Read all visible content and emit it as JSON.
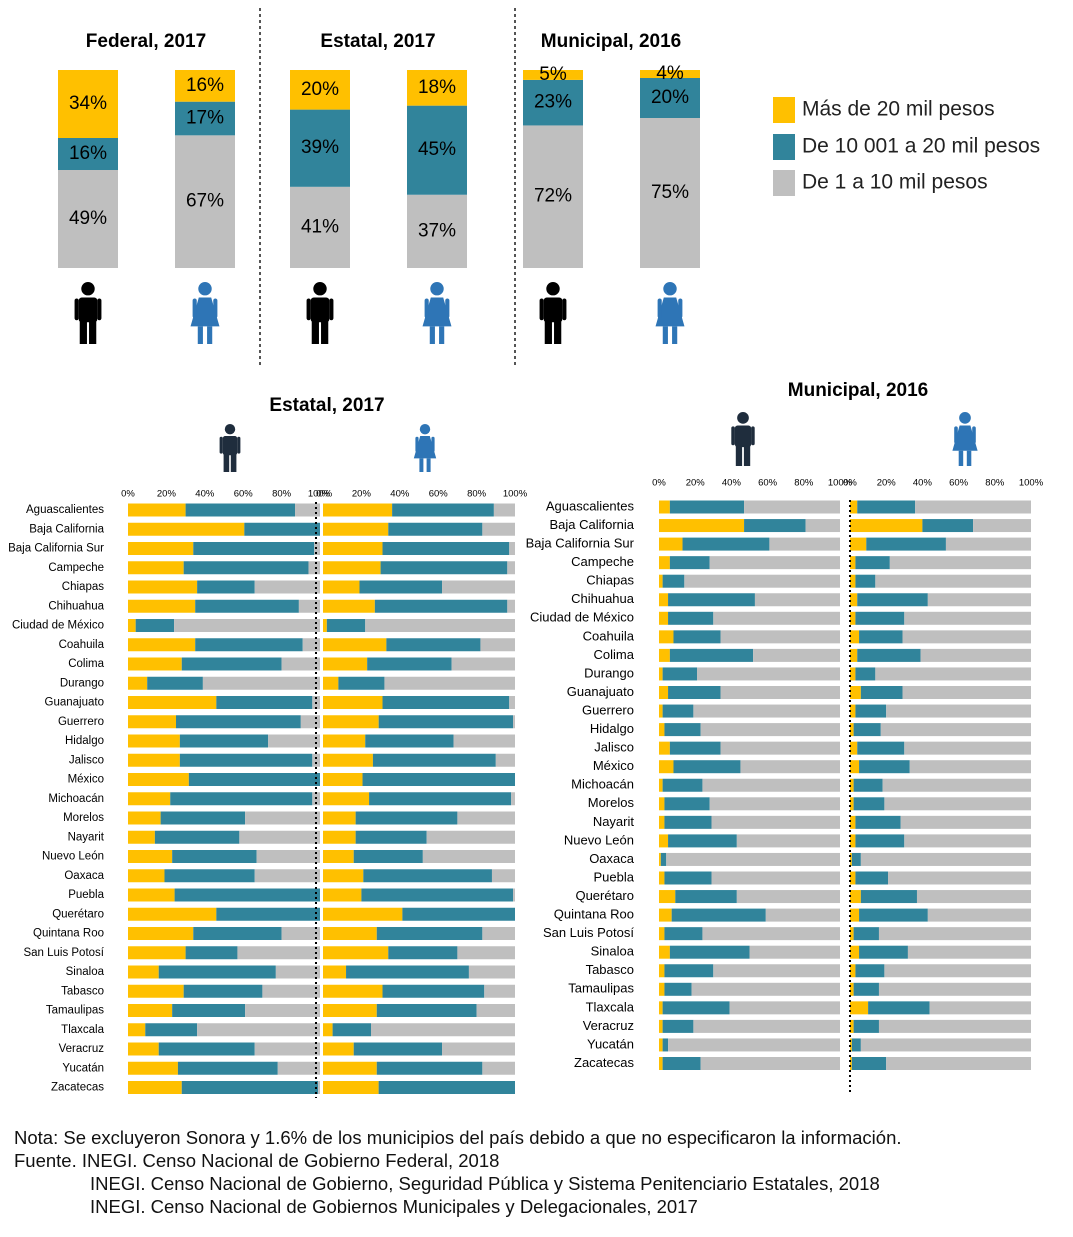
{
  "colors": {
    "high": "#FFC000",
    "mid": "#31849B",
    "low": "#BFBFBF",
    "male": "#000000",
    "female": "#2E75B6",
    "male_small": "#1F2D3D"
  },
  "legend": [
    "Más de 20 mil pesos",
    "De 10 001 a 20 mil pesos",
    "De 1 a 10 mil pesos"
  ],
  "icons": {
    "male": "man-icon",
    "female": "woman-icon"
  },
  "chart_data": [
    {
      "type": "bar",
      "stacked": true,
      "percent_stacked": true,
      "groups": [
        {
          "title": "Federal, 2017",
          "bars": [
            {
              "sex": "male",
              "values": [
                49,
                16,
                34
              ],
              "labels": [
                "49%",
                "16%",
                "34%"
              ]
            },
            {
              "sex": "female",
              "values": [
                67,
                17,
                16
              ],
              "labels": [
                "67%",
                "17%",
                "16%"
              ]
            }
          ]
        },
        {
          "title": "Estatal, 2017",
          "bars": [
            {
              "sex": "male",
              "values": [
                41,
                39,
                20
              ],
              "labels": [
                "41%",
                "39%",
                "20%"
              ]
            },
            {
              "sex": "female",
              "values": [
                37,
                45,
                18
              ],
              "labels": [
                "37%",
                "45%",
                "18%"
              ]
            }
          ]
        },
        {
          "title": "Municipal,  2016",
          "bars": [
            {
              "sex": "male",
              "values": [
                72,
                23,
                5
              ],
              "labels": [
                "72%",
                "23%",
                "5%"
              ]
            },
            {
              "sex": "female",
              "values": [
                75,
                20,
                4
              ],
              "labels": [
                "75%",
                "20%",
                "4%"
              ]
            }
          ]
        }
      ],
      "series": [
        {
          "name": "De 1 a 10 mil pesos"
        },
        {
          "name": "De 10 001 a 20 mil pesos"
        },
        {
          "name": "Más de 20 mil pesos"
        }
      ],
      "ylim": [
        0,
        100
      ]
    },
    {
      "type": "bar",
      "orientation": "horizontal",
      "stacked": true,
      "title": "Estatal, 2017",
      "ticks": [
        "0%",
        "20%",
        "40%",
        "60%",
        "80%",
        "100%"
      ],
      "xlim": [
        0,
        100
      ],
      "segment_order": [
        "Más de 20 mil pesos",
        "De 10 001 a 20 mil pesos",
        "De 1 a 10 mil pesos"
      ],
      "categories": [
        "Aguascalientes",
        "Baja California",
        "Baja California Sur",
        "Campeche",
        "Chiapas",
        "Chihuahua",
        "Ciudad de México",
        "Coahuila",
        "Colima",
        "Durango",
        "Guanajuato",
        "Guerrero",
        "Hidalgo",
        "Jalisco",
        "México",
        "Michoacán",
        "Morelos",
        "Nayarit",
        "Nuevo León",
        "Oaxaca",
        "Puebla",
        "Querétaro",
        "Quintana Roo",
        "San Luis Potosí",
        "Sinaloa",
        "Tabasco",
        "Tamaulipas",
        "Tlaxcala",
        "Veracruz",
        "Yucatán",
        "Zacatecas"
      ],
      "male": [
        [
          30,
          57,
          13
        ],
        [
          63,
          41,
          0
        ],
        [
          34,
          63,
          3
        ],
        [
          29,
          65,
          6
        ],
        [
          36,
          30,
          34
        ],
        [
          35,
          54,
          11
        ],
        [
          4,
          20,
          76
        ],
        [
          35,
          56,
          9
        ],
        [
          28,
          52,
          20
        ],
        [
          10,
          29,
          61
        ],
        [
          46,
          50,
          4
        ],
        [
          25,
          65,
          10
        ],
        [
          27,
          46,
          27
        ],
        [
          27,
          69,
          4
        ],
        [
          32,
          69,
          0
        ],
        [
          22,
          74,
          4
        ],
        [
          17,
          44,
          39
        ],
        [
          14,
          44,
          42
        ],
        [
          23,
          44,
          33
        ],
        [
          19,
          47,
          34
        ],
        [
          25,
          78,
          0
        ],
        [
          46,
          54,
          0
        ],
        [
          34,
          46,
          20
        ],
        [
          30,
          27,
          43
        ],
        [
          16,
          61,
          23
        ],
        [
          29,
          41,
          30
        ],
        [
          23,
          38,
          39
        ],
        [
          9,
          27,
          64
        ],
        [
          16,
          50,
          34
        ],
        [
          26,
          52,
          22
        ],
        [
          28,
          71,
          1
        ]
      ],
      "female": [
        [
          36,
          53,
          11
        ],
        [
          34,
          49,
          17
        ],
        [
          31,
          66,
          3
        ],
        [
          30,
          66,
          4
        ],
        [
          19,
          43,
          38
        ],
        [
          27,
          69,
          4
        ],
        [
          2,
          20,
          78
        ],
        [
          33,
          49,
          18
        ],
        [
          23,
          44,
          33
        ],
        [
          8,
          24,
          68
        ],
        [
          31,
          66,
          3
        ],
        [
          29,
          70,
          1
        ],
        [
          22,
          46,
          32
        ],
        [
          26,
          64,
          10
        ],
        [
          21,
          81,
          0
        ],
        [
          24,
          74,
          2
        ],
        [
          17,
          53,
          30
        ],
        [
          17,
          37,
          46
        ],
        [
          16,
          36,
          48
        ],
        [
          21,
          67,
          12
        ],
        [
          20,
          79,
          1
        ],
        [
          43,
          61,
          0
        ],
        [
          28,
          55,
          17
        ],
        [
          34,
          36,
          30
        ],
        [
          12,
          64,
          24
        ],
        [
          31,
          53,
          16
        ],
        [
          28,
          52,
          20
        ],
        [
          5,
          20,
          75
        ],
        [
          16,
          46,
          38
        ],
        [
          28,
          55,
          17
        ],
        [
          31,
          76,
          0
        ]
      ]
    },
    {
      "type": "bar",
      "orientation": "horizontal",
      "stacked": true,
      "title": "Municipal,  2016",
      "ticks": [
        "0%",
        "20%",
        "40%",
        "60%",
        "80%",
        "100%"
      ],
      "xlim": [
        0,
        100
      ],
      "segment_order": [
        "Más de 20 mil pesos",
        "De 10 001 a 20 mil pesos",
        "De 1 a 10 mil pesos"
      ],
      "categories": [
        "Aguascalientes",
        "Baja California",
        "Baja California Sur",
        "Campeche",
        "Chiapas",
        "Chihuahua",
        "Ciudad de México",
        "Coahuila",
        "Colima",
        "Durango",
        "Guanajuato",
        "Guerrero",
        "Hidalgo",
        "Jalisco",
        "México",
        "Michoacán",
        "Morelos",
        "Nayarit",
        "Nuevo León",
        "Oaxaca",
        "Puebla",
        "Querétaro",
        "Quintana Roo",
        "San Luis Potosí",
        "Sinaloa",
        "Tabasco",
        "Tamaulipas",
        "Tlaxcala",
        "Veracruz",
        "Yucatán",
        "Zacatecas"
      ],
      "male": [
        [
          6,
          41,
          53
        ],
        [
          47,
          34,
          19
        ],
        [
          13,
          48,
          39
        ],
        [
          6,
          22,
          72
        ],
        [
          2,
          12,
          86
        ],
        [
          5,
          48,
          47
        ],
        [
          5,
          25,
          70
        ],
        [
          8,
          26,
          66
        ],
        [
          6,
          46,
          48
        ],
        [
          2,
          19,
          79
        ],
        [
          5,
          29,
          66
        ],
        [
          2,
          17,
          81
        ],
        [
          3,
          20,
          77
        ],
        [
          6,
          28,
          66
        ],
        [
          8,
          37,
          55
        ],
        [
          2,
          22,
          76
        ],
        [
          3,
          25,
          72
        ],
        [
          3,
          26,
          71
        ],
        [
          5,
          38,
          57
        ],
        [
          1,
          3,
          96
        ],
        [
          3,
          26,
          71
        ],
        [
          9,
          34,
          57
        ],
        [
          7,
          52,
          41
        ],
        [
          3,
          21,
          76
        ],
        [
          6,
          44,
          50
        ],
        [
          3,
          27,
          70
        ],
        [
          3,
          15,
          82
        ],
        [
          2,
          37,
          61
        ],
        [
          2,
          17,
          81
        ],
        [
          2,
          3,
          95
        ],
        [
          2,
          21,
          77
        ]
      ],
      "female": [
        [
          4,
          32,
          64
        ],
        [
          40,
          28,
          32
        ],
        [
          9,
          44,
          47
        ],
        [
          3,
          19,
          78
        ],
        [
          3,
          11,
          86
        ],
        [
          4,
          39,
          57
        ],
        [
          3,
          27,
          70
        ],
        [
          5,
          24,
          71
        ],
        [
          4,
          35,
          61
        ],
        [
          3,
          11,
          86
        ],
        [
          6,
          23,
          71
        ],
        [
          3,
          17,
          80
        ],
        [
          2,
          15,
          83
        ],
        [
          4,
          26,
          70
        ],
        [
          5,
          28,
          67
        ],
        [
          2,
          16,
          82
        ],
        [
          2,
          17,
          81
        ],
        [
          3,
          25,
          72
        ],
        [
          3,
          27,
          70
        ],
        [
          1,
          5,
          94
        ],
        [
          3,
          18,
          79
        ],
        [
          6,
          31,
          63
        ],
        [
          5,
          38,
          57
        ],
        [
          2,
          14,
          84
        ],
        [
          5,
          27,
          68
        ],
        [
          3,
          16,
          81
        ],
        [
          2,
          14,
          84
        ],
        [
          10,
          34,
          56
        ],
        [
          2,
          14,
          84
        ],
        [
          1,
          5,
          94
        ],
        [
          1,
          19,
          80
        ]
      ]
    }
  ],
  "footer": {
    "note": "Nota: Se excluyeron Sonora y 1.6% de los municipios del país debido a que no especificaron la información.",
    "source1": "Fuente. INEGI. Censo Nacional de Gobierno Federal, 2018",
    "source2": "INEGI. Censo Nacional de Gobierno, Seguridad Pública y Sistema Penitenciario Estatales, 2018",
    "source3": "INEGI. Censo Nacional de Gobiernos Municipales y Delegacionales, 2017"
  }
}
